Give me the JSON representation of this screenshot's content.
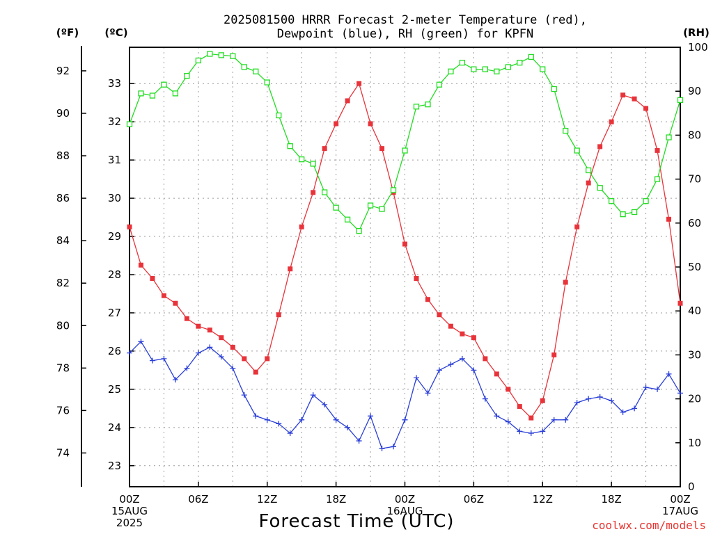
{
  "title_line1": "2025081500 HRRR Forecast 2-meter Temperature (red),",
  "title_line2": "Dewpoint (blue), RH (green) for KPFN",
  "units": {
    "far": "(ºF)",
    "cel": "(ºC)",
    "rh": "(RH)"
  },
  "credit": "coolwx.com/models",
  "colors": {
    "temperature": "#e8333a",
    "dewpoint": "#2a3fd8",
    "rh": "#22dd22"
  },
  "chart_data": {
    "type": "line",
    "xlabel": "Forecast Time (UTC)",
    "x_hours": [
      0,
      1,
      2,
      3,
      4,
      5,
      6,
      7,
      8,
      9,
      10,
      11,
      12,
      13,
      14,
      15,
      16,
      17,
      18,
      19,
      20,
      21,
      22,
      23,
      24,
      25,
      26,
      27,
      28,
      29,
      30,
      31,
      32,
      33,
      34,
      35,
      36,
      37,
      38,
      39,
      40,
      41,
      42,
      43,
      44,
      45,
      46,
      47,
      48
    ],
    "x_ticks": [
      {
        "hour": 0,
        "lines": [
          "00Z",
          "15AUG",
          "2025"
        ]
      },
      {
        "hour": 6,
        "lines": [
          "06Z"
        ]
      },
      {
        "hour": 12,
        "lines": [
          "12Z"
        ]
      },
      {
        "hour": 18,
        "lines": [
          "18Z"
        ]
      },
      {
        "hour": 24,
        "lines": [
          "00Z",
          "16AUG"
        ]
      },
      {
        "hour": 30,
        "lines": [
          "06Z"
        ]
      },
      {
        "hour": 36,
        "lines": [
          "12Z"
        ]
      },
      {
        "hour": 42,
        "lines": [
          "18Z"
        ]
      },
      {
        "hour": 48,
        "lines": [
          "00Z",
          "17AUG"
        ]
      }
    ],
    "xlim": [
      0,
      48
    ],
    "left_axis_c": {
      "ylim": [
        22.45,
        33.95
      ],
      "ticks": [
        23,
        24,
        25,
        26,
        27,
        28,
        29,
        30,
        31,
        32,
        33
      ]
    },
    "left_axis_f": {
      "ticks": [
        74,
        76,
        78,
        80,
        82,
        84,
        86,
        88,
        90,
        92
      ]
    },
    "right_axis_rh": {
      "ylim": [
        0,
        100
      ],
      "ticks": [
        0,
        10,
        20,
        30,
        40,
        50,
        60,
        70,
        80,
        90,
        100
      ]
    },
    "series": [
      {
        "name": "Temperature",
        "axis": "celsius",
        "marker": "filled-square",
        "values": [
          29.25,
          28.25,
          27.9,
          27.45,
          27.25,
          26.85,
          26.65,
          26.55,
          26.35,
          26.1,
          25.8,
          25.45,
          25.8,
          26.95,
          28.15,
          29.25,
          30.15,
          31.3,
          31.95,
          32.55,
          33.0,
          31.95,
          31.3,
          30.15,
          28.8,
          27.9,
          27.35,
          26.95,
          26.65,
          26.45,
          26.35,
          25.8,
          25.4,
          25.0,
          24.55,
          24.25,
          24.7,
          25.9,
          27.8,
          29.25,
          30.4,
          31.35,
          32.0,
          32.7,
          32.6,
          32.35,
          31.25,
          29.45,
          27.25
        ]
      },
      {
        "name": "Dewpoint",
        "axis": "celsius",
        "marker": "plus",
        "values": [
          25.95,
          26.25,
          25.75,
          25.8,
          25.25,
          25.55,
          25.95,
          26.1,
          25.85,
          25.55,
          24.85,
          24.3,
          24.2,
          24.1,
          23.85,
          24.2,
          24.85,
          24.6,
          24.2,
          24.0,
          23.65,
          24.3,
          23.45,
          23.5,
          24.2,
          25.3,
          24.9,
          25.5,
          25.65,
          25.8,
          25.5,
          24.75,
          24.3,
          24.15,
          23.9,
          23.85,
          23.9,
          24.2,
          24.2,
          24.65,
          24.75,
          24.8,
          24.7,
          24.4,
          24.5,
          25.05,
          25.0,
          25.4,
          24.9
        ]
      },
      {
        "name": "RH",
        "axis": "rh",
        "marker": "open-square",
        "values": [
          82.5,
          89.5,
          89.0,
          91.5,
          89.5,
          93.5,
          97.0,
          98.5,
          98.2,
          98.0,
          95.5,
          94.5,
          92.0,
          84.5,
          77.5,
          74.5,
          73.5,
          67.0,
          63.5,
          60.8,
          58.2,
          64.0,
          63.2,
          67.5,
          76.5,
          86.5,
          87.0,
          91.5,
          94.5,
          96.5,
          95.0,
          95.0,
          94.5,
          95.5,
          96.5,
          97.8,
          95.0,
          90.5,
          81.0,
          76.5,
          72.0,
          68.0,
          65.0,
          62.0,
          62.5,
          65.0,
          70.0,
          79.5,
          88.0
        ]
      }
    ]
  }
}
